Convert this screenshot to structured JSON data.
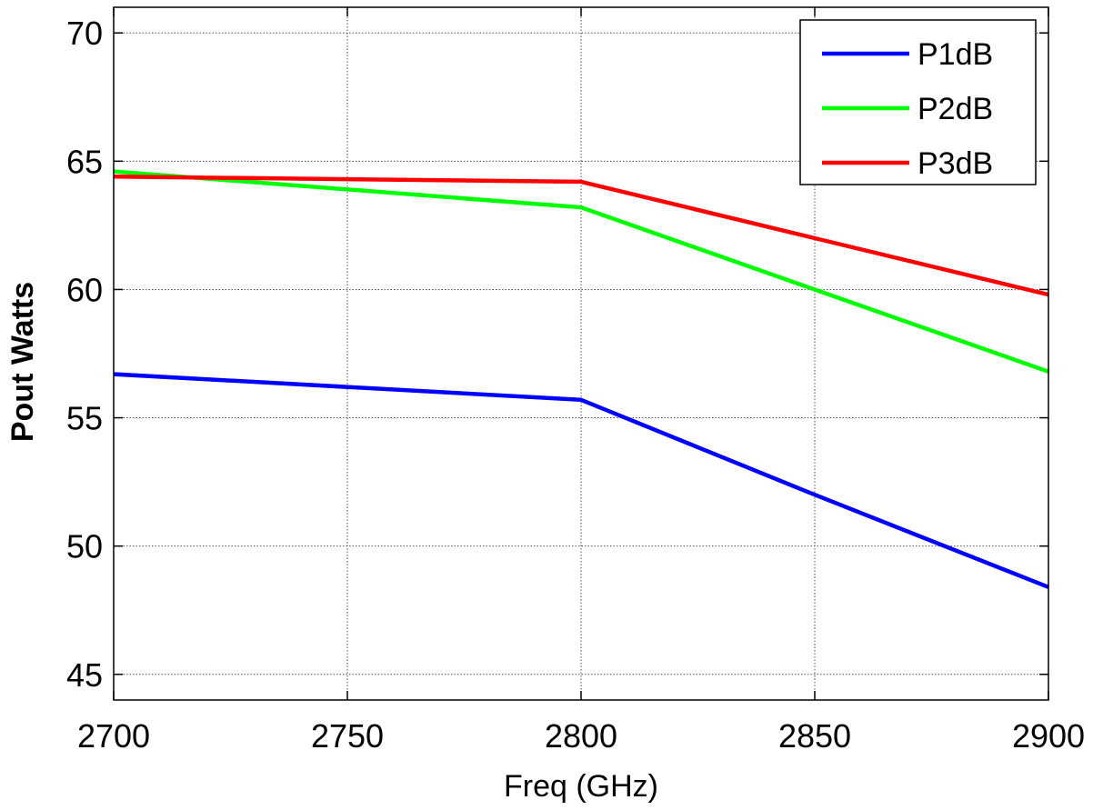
{
  "chart_data": {
    "type": "line",
    "title": "",
    "xlabel": "Freq (GHz)",
    "ylabel": "Pout Watts",
    "xlim": [
      2700,
      2900
    ],
    "ylim": [
      44,
      71
    ],
    "xticks": [
      2700,
      2750,
      2800,
      2850,
      2900
    ],
    "yticks": [
      45,
      50,
      55,
      60,
      65,
      70
    ],
    "grid": true,
    "legend_position": "top-right",
    "x": [
      2700,
      2800,
      2850,
      2900
    ],
    "series": [
      {
        "name": "P1dB",
        "color": "#0000ff",
        "values": [
          56.7,
          55.7,
          52.0,
          48.4
        ]
      },
      {
        "name": "P2dB",
        "color": "#00ff00",
        "values": [
          64.6,
          63.2,
          60.0,
          56.8
        ]
      },
      {
        "name": "P3dB",
        "color": "#ff0000",
        "values": [
          64.4,
          64.2,
          62.0,
          59.8
        ]
      }
    ]
  }
}
